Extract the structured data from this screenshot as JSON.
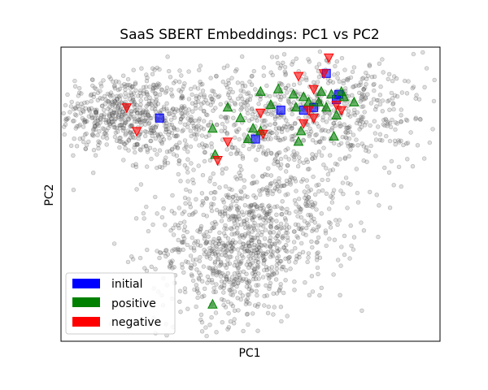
{
  "chart_data": {
    "type": "scatter",
    "title": "SaaS SBERT Embeddings: PC1 vs PC2",
    "xlabel": "PC1",
    "ylabel": "PC2",
    "xlim": [
      -3.6,
      3.9
    ],
    "ylim": [
      -3.7,
      1.9
    ],
    "xticks": false,
    "yticks": false,
    "grid": false,
    "legend": {
      "placement": "lower-left",
      "entries": [
        {
          "label": "initial",
          "color": "#0000ff"
        },
        {
          "label": "positive",
          "color": "#008000"
        },
        {
          "label": "negative",
          "color": "#ff0000"
        }
      ]
    },
    "background": {
      "color": "#808080",
      "description_free_clusters": [
        {
          "cx": -2.5,
          "cy": 0.65,
          "sx": 0.55,
          "sy": 0.35,
          "n": 380
        },
        {
          "cx": -1.4,
          "cy": 0.45,
          "sx": 0.75,
          "sy": 0.5,
          "n": 360
        },
        {
          "cx": -0.2,
          "cy": -2.0,
          "sx": 0.75,
          "sy": 0.65,
          "n": 700
        },
        {
          "cx": 0.9,
          "cy": -1.1,
          "sx": 0.7,
          "sy": 0.7,
          "n": 330
        },
        {
          "cx": 1.9,
          "cy": 0.7,
          "sx": 0.95,
          "sy": 0.55,
          "n": 450
        },
        {
          "cx": 0.3,
          "cy": 0.6,
          "sx": 0.9,
          "sy": 0.55,
          "n": 200
        }
      ]
    },
    "series": [
      {
        "name": "initial",
        "marker": "square",
        "color": "#0000ff",
        "points": [
          [
            -1.65,
            0.55
          ],
          [
            1.65,
            1.4
          ],
          [
            1.9,
            1.0
          ],
          [
            1.85,
            0.9
          ],
          [
            1.4,
            0.75
          ],
          [
            0.75,
            0.7
          ],
          [
            1.2,
            0.7
          ],
          [
            0.25,
            0.15
          ]
        ]
      },
      {
        "name": "positive",
        "marker": "triangle-up",
        "color": "#008000",
        "points": [
          [
            0.35,
            1.05
          ],
          [
            0.7,
            1.1
          ],
          [
            1.0,
            1.0
          ],
          [
            1.2,
            0.95
          ],
          [
            1.55,
            1.05
          ],
          [
            1.75,
            1.0
          ],
          [
            1.95,
            1.05
          ],
          [
            2.0,
            0.95
          ],
          [
            2.2,
            0.85
          ],
          [
            1.3,
            0.85
          ],
          [
            1.5,
            0.85
          ],
          [
            1.65,
            0.75
          ],
          [
            0.55,
            0.8
          ],
          [
            1.05,
            0.75
          ],
          [
            1.85,
            0.6
          ],
          [
            -0.3,
            0.75
          ],
          [
            -0.05,
            0.55
          ],
          [
            -0.6,
            0.35
          ],
          [
            0.2,
            0.35
          ],
          [
            0.35,
            0.3
          ],
          [
            1.15,
            0.3
          ],
          [
            0.1,
            0.15
          ],
          [
            1.8,
            0.2
          ],
          [
            1.1,
            0.1
          ],
          [
            -0.55,
            -0.15
          ],
          [
            -0.6,
            -3.0
          ]
        ]
      },
      {
        "name": "negative",
        "marker": "triangle-down",
        "color": "#ff0000",
        "points": [
          [
            1.7,
            1.7
          ],
          [
            1.1,
            1.35
          ],
          [
            1.6,
            1.4
          ],
          [
            1.4,
            1.1
          ],
          [
            1.3,
            0.7
          ],
          [
            1.4,
            0.55
          ],
          [
            1.85,
            0.8
          ],
          [
            1.95,
            0.7
          ],
          [
            0.35,
            0.65
          ],
          [
            1.2,
            0.45
          ],
          [
            0.4,
            0.25
          ],
          [
            -2.3,
            0.75
          ],
          [
            -2.1,
            0.3
          ],
          [
            -0.3,
            0.1
          ],
          [
            -0.5,
            -0.25
          ]
        ]
      }
    ]
  }
}
